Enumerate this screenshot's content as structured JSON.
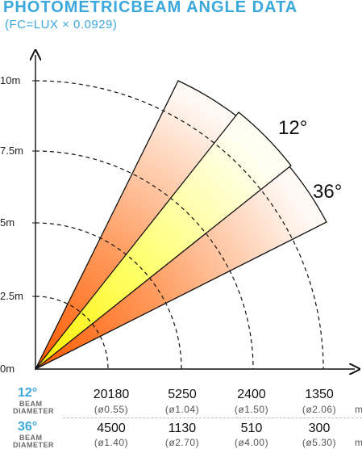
{
  "header": {
    "title": "PHOTOMETRICBEAM ANGLE DATA",
    "subtitle": "(FC=LUX × 0.0929)"
  },
  "diagram": {
    "y_ticks": [
      "10m",
      "7.5m",
      "5m",
      "2.5m",
      "0m"
    ],
    "beams": [
      {
        "angle": 12,
        "label": "12°"
      },
      {
        "angle": 36,
        "label": "36°"
      }
    ],
    "colors": {
      "accent": "#3aa8dc",
      "beam_inner_start": "#ffff2a",
      "beam_inner_end": "#fffaf0",
      "beam_outer_start": "#ff6a10",
      "beam_outer_end": "#fff5ef"
    }
  },
  "table": {
    "diameter_unit": "m",
    "beam_sublabel_1": "BEAM",
    "beam_sublabel_2": "DIAMETER",
    "rows": [
      {
        "angle": "12°",
        "lux": [
          "20180",
          "5250",
          "2400",
          "1350"
        ],
        "diameter": [
          "(ø0.55)",
          "(ø1.04)",
          "(ø1.50)",
          "(ø2.06)"
        ]
      },
      {
        "angle": "36°",
        "lux": [
          "4500",
          "1130",
          "510",
          "300"
        ],
        "diameter": [
          "(ø1.40)",
          "(ø2.70)",
          "(ø4.00)",
          "(ø5.30)"
        ]
      }
    ]
  }
}
